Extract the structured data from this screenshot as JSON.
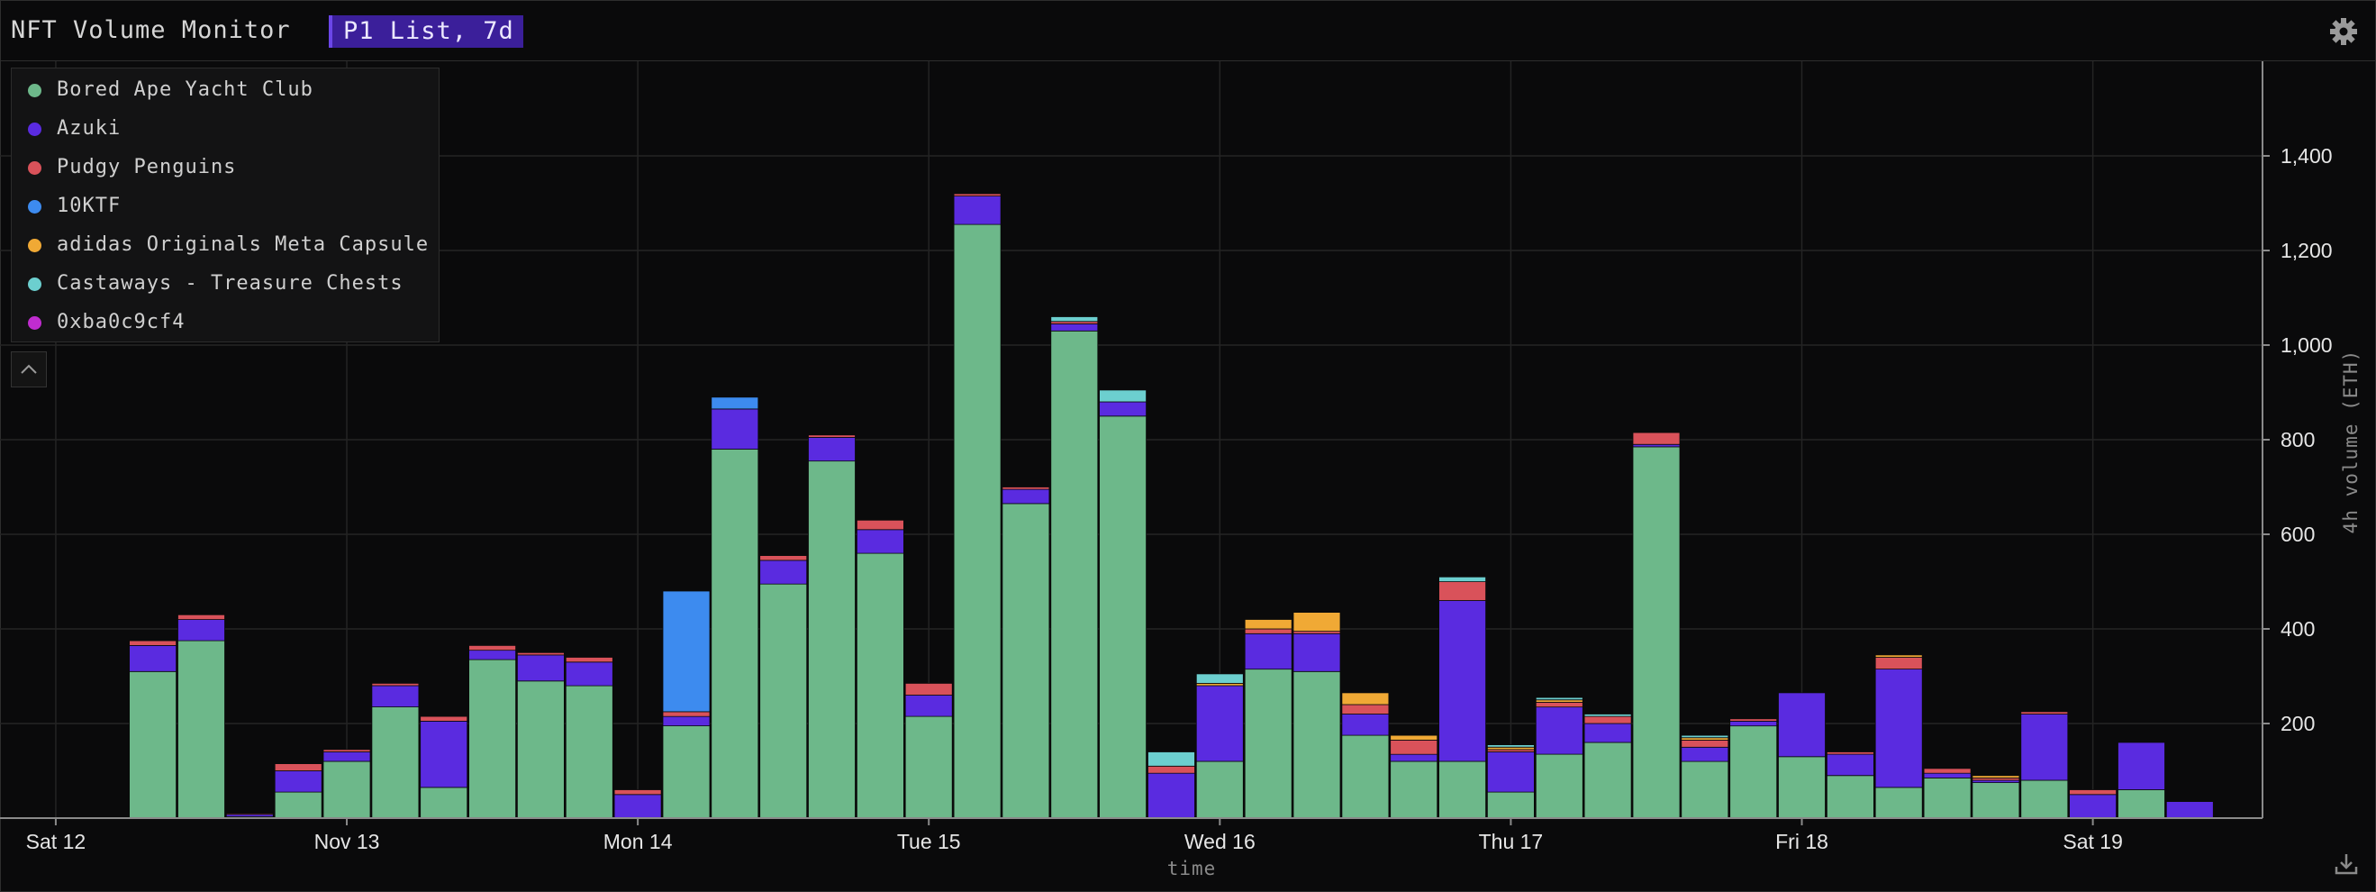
{
  "header": {
    "title": "NFT Volume Monitor",
    "list_badge": "P1 List, 7d",
    "settings_icon": "gear-icon"
  },
  "legend": {
    "items": [
      {
        "label": "Bored Ape Yacht Club",
        "color": "#6db88a"
      },
      {
        "label": "Azuki",
        "color": "#5a2be0"
      },
      {
        "label": "Pudgy Penguins",
        "color": "#d9525a"
      },
      {
        "label": "10KTF",
        "color": "#3d8bef"
      },
      {
        "label": "adidas Originals Meta Capsule",
        "color": "#f0a935"
      },
      {
        "label": "Castaways - Treasure Chests",
        "color": "#6ccfcf"
      },
      {
        "label": "0xba0c9cf4",
        "color": "#c02ccf"
      }
    ],
    "collapse_icon": "chevron-up-icon"
  },
  "download_icon": "download-icon",
  "chart_data": {
    "type": "bar",
    "stacked": true,
    "xlabel": "time",
    "ylabel": "4h volume (ETH)",
    "ylim": [
      0,
      1600
    ],
    "yticks": [
      "200",
      "400",
      "600",
      "800",
      "1,000",
      "1,200",
      "1,400"
    ],
    "ytick_values": [
      200,
      400,
      600,
      800,
      1000,
      1200,
      1400
    ],
    "xticks": [
      "Sat 12",
      "Nov 13",
      "Mon 14",
      "Tue 15",
      "Wed 16",
      "Thu 17",
      "Fri 18",
      "Sat 19"
    ],
    "xtick_slots": [
      0,
      6,
      12,
      18,
      24,
      30,
      36,
      42
    ],
    "grid": true,
    "legend_position": "top-left",
    "num_slots": 46,
    "start_slot": 2,
    "colors": [
      "#6db88a",
      "#5a2be0",
      "#d9525a",
      "#3d8bef",
      "#f0a935",
      "#6ccfcf",
      "#c02ccf"
    ],
    "series": [
      {
        "name": "Bored Ape Yacht Club",
        "values": [
          310,
          375,
          3,
          55,
          120,
          235,
          65,
          335,
          290,
          280,
          0,
          195,
          780,
          495,
          755,
          560,
          215,
          1255,
          665,
          1030,
          850,
          0,
          120,
          315,
          310,
          175,
          120,
          120,
          55,
          135,
          160,
          785,
          120,
          195,
          130,
          90,
          65,
          85,
          75,
          80,
          0,
          60,
          0,
          0
        ]
      },
      {
        "name": "Azuki",
        "values": [
          55,
          45,
          5,
          45,
          20,
          45,
          140,
          20,
          55,
          50,
          50,
          20,
          85,
          50,
          50,
          50,
          45,
          60,
          30,
          15,
          30,
          95,
          160,
          75,
          80,
          45,
          15,
          340,
          85,
          100,
          40,
          5,
          30,
          10,
          135,
          45,
          250,
          10,
          5,
          140,
          50,
          100,
          35,
          0
        ]
      },
      {
        "name": "Pudgy Penguins",
        "values": [
          10,
          10,
          2,
          15,
          5,
          5,
          10,
          10,
          5,
          10,
          10,
          10,
          0,
          10,
          5,
          20,
          25,
          5,
          5,
          5,
          0,
          15,
          0,
          10,
          5,
          20,
          30,
          40,
          5,
          10,
          15,
          25,
          15,
          5,
          0,
          5,
          25,
          10,
          5,
          5,
          10,
          0,
          0,
          0
        ]
      },
      {
        "name": "10KTF",
        "values": [
          0,
          0,
          0,
          0,
          0,
          0,
          0,
          0,
          0,
          0,
          0,
          255,
          25,
          0,
          0,
          0,
          0,
          0,
          0,
          0,
          0,
          0,
          0,
          0,
          0,
          0,
          0,
          0,
          0,
          0,
          0,
          0,
          0,
          0,
          0,
          0,
          0,
          0,
          0,
          0,
          0,
          0,
          0,
          0
        ]
      },
      {
        "name": "adidas Originals Meta Capsule",
        "values": [
          0,
          0,
          0,
          0,
          0,
          0,
          0,
          0,
          0,
          0,
          0,
          0,
          0,
          0,
          0,
          0,
          0,
          0,
          0,
          0,
          0,
          0,
          5,
          20,
          40,
          25,
          10,
          0,
          5,
          5,
          0,
          0,
          5,
          0,
          0,
          0,
          5,
          0,
          5,
          0,
          0,
          0,
          0,
          0
        ]
      },
      {
        "name": "Castaways - Treasure Chests",
        "values": [
          0,
          0,
          0,
          0,
          0,
          0,
          0,
          0,
          0,
          0,
          0,
          0,
          0,
          0,
          0,
          0,
          0,
          0,
          0,
          10,
          25,
          30,
          20,
          0,
          0,
          0,
          0,
          10,
          5,
          5,
          5,
          0,
          5,
          0,
          0,
          0,
          0,
          0,
          0,
          0,
          0,
          0,
          0,
          0
        ]
      },
      {
        "name": "0xba0c9cf4",
        "values": [
          0,
          0,
          0,
          0,
          0,
          0,
          0,
          0,
          0,
          0,
          0,
          0,
          0,
          0,
          0,
          0,
          0,
          0,
          0,
          0,
          0,
          0,
          0,
          0,
          0,
          0,
          0,
          0,
          0,
          0,
          0,
          0,
          0,
          0,
          0,
          0,
          0,
          0,
          0,
          0,
          0,
          0,
          0,
          0
        ]
      }
    ]
  }
}
